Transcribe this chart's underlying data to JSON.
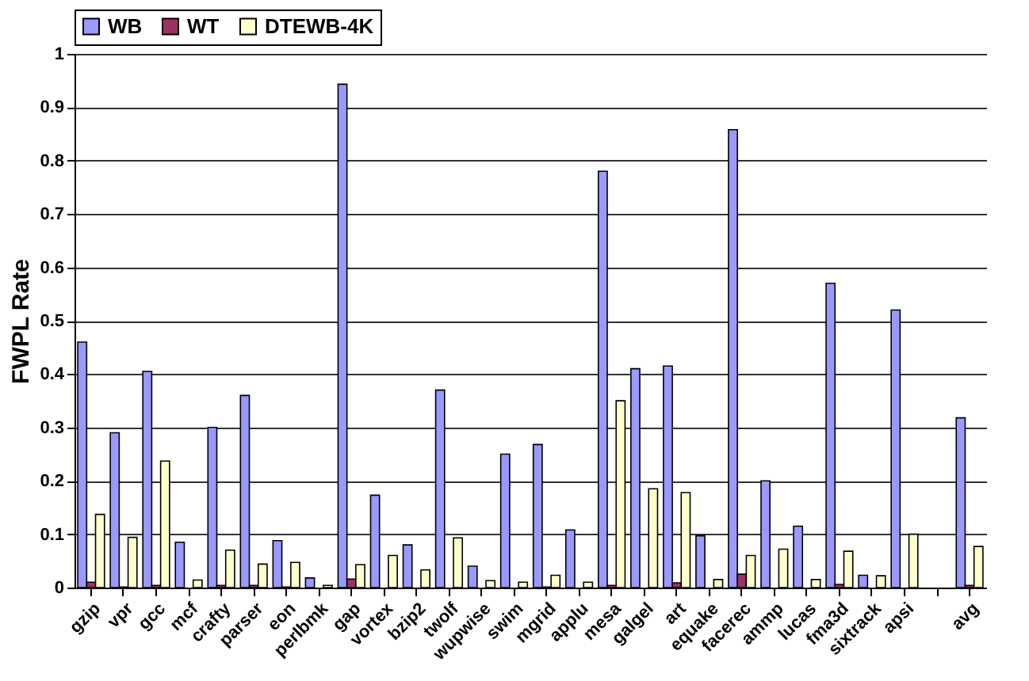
{
  "chart_data": {
    "type": "bar",
    "ylabel": "FWPL Rate",
    "categories": [
      "gzip",
      "vpr",
      "gcc",
      "mcf",
      "crafty",
      "parser",
      "eon",
      "perlbmk",
      "gap",
      "vortex",
      "bzip2",
      "twolf",
      "wupwise",
      "swim",
      "mgrid",
      "applu",
      "mesa",
      "galgel",
      "art",
      "equake",
      "facerec",
      "ammp",
      "lucas",
      "fma3d",
      "sixtrack",
      "apsi",
      null,
      "avg"
    ],
    "series": [
      {
        "name": "WB",
        "color": "#9999ff",
        "values": [
          0.46,
          0.29,
          0.405,
          0.085,
          0.3,
          0.36,
          0.088,
          0.018,
          0.943,
          0.173,
          0.08,
          0.37,
          0.04,
          0.25,
          0.268,
          0.108,
          0.78,
          0.41,
          0.415,
          0.097,
          0.858,
          0.2,
          0.115,
          0.57,
          0.023,
          0.52,
          null,
          0.318
        ]
      },
      {
        "name": "WT",
        "color": "#993366",
        "values": [
          0.01,
          0.001,
          0.004,
          0,
          0.004,
          0.004,
          0.001,
          0,
          0.016,
          0,
          0,
          0,
          0,
          0,
          0.001,
          0,
          0.004,
          0,
          0.009,
          0,
          0.025,
          0,
          0,
          0.006,
          0,
          0,
          null,
          0.004
        ]
      },
      {
        "name": "DTEWB-4K",
        "color": "#ffffcc",
        "values": [
          0.137,
          0.094,
          0.237,
          0.014,
          0.07,
          0.044,
          0.047,
          0.004,
          0.043,
          0.06,
          0.033,
          0.093,
          0.013,
          0.01,
          0.023,
          0.01,
          0.35,
          0.185,
          0.178,
          0.015,
          0.06,
          0.072,
          0.015,
          0.068,
          0.022,
          0.1,
          null,
          0.077
        ]
      }
    ],
    "ylim": [
      0,
      1
    ],
    "yticks": [
      0,
      0.1,
      0.2,
      0.3,
      0.4,
      0.5,
      0.6,
      0.7,
      0.8,
      0.9,
      1
    ],
    "grid": "y",
    "legend": "top"
  }
}
